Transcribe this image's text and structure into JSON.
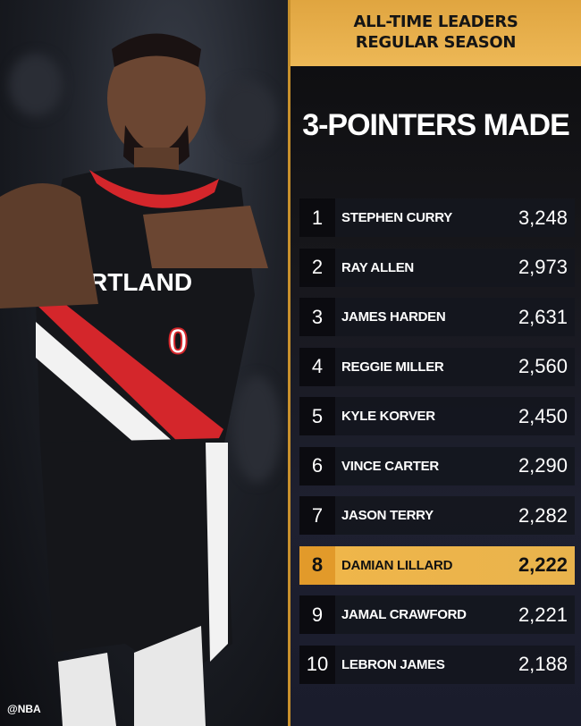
{
  "header": {
    "line1": "ALL-TIME LEADERS",
    "line2": "REGULAR SEASON"
  },
  "title": "3-POINTERS MADE",
  "photo": {
    "jersey_text": "RTLAND",
    "jersey_number": "0",
    "credit": "@NBA"
  },
  "colors": {
    "gold": "#edb856",
    "highlight": "#e29a2a",
    "team_red": "#d4262b"
  },
  "leaders": [
    {
      "rank": "1",
      "name": "STEPHEN CURRY",
      "value": "3,248"
    },
    {
      "rank": "2",
      "name": "RAY ALLEN",
      "value": "2,973"
    },
    {
      "rank": "3",
      "name": "JAMES HARDEN",
      "value": "2,631"
    },
    {
      "rank": "4",
      "name": "REGGIE MILLER",
      "value": "2,560"
    },
    {
      "rank": "5",
      "name": "KYLE KORVER",
      "value": "2,450"
    },
    {
      "rank": "6",
      "name": "VINCE CARTER",
      "value": "2,290"
    },
    {
      "rank": "7",
      "name": "JASON TERRY",
      "value": "2,282"
    },
    {
      "rank": "8",
      "name": "DAMIAN LILLARD",
      "value": "2,222",
      "highlighted": true
    },
    {
      "rank": "9",
      "name": "JAMAL CRAWFORD",
      "value": "2,221"
    },
    {
      "rank": "10",
      "name": "LEBRON JAMES",
      "value": "2,188"
    }
  ]
}
